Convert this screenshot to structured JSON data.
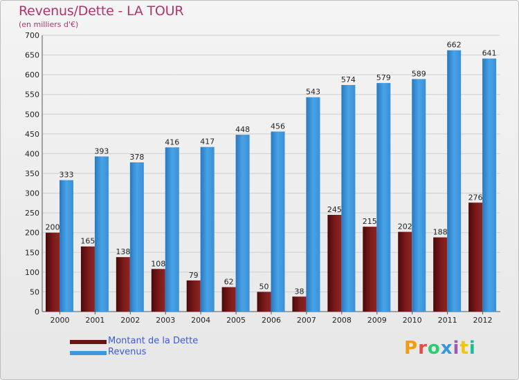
{
  "header": {
    "title": "Revenus/Dette - LA TOUR",
    "subtitle": "(en milliers d'€)"
  },
  "legend": {
    "debt_label": "Montant de la Dette",
    "revenue_label": "Revenus"
  },
  "brand": {
    "name": "Proxiti",
    "colors": [
      "#f39c12",
      "#e74c3c",
      "#2ecc71",
      "#3498db",
      "#9b59b6",
      "#f1c40f",
      "#1abc9c"
    ]
  },
  "colors": {
    "debt": "#6b1414",
    "revenue": "#3d97dc",
    "title": "#b0336b",
    "legend_text": "#3a5bd9"
  },
  "chart_data": {
    "type": "bar",
    "categories": [
      "2000",
      "2001",
      "2002",
      "2003",
      "2004",
      "2005",
      "2006",
      "2007",
      "2008",
      "2009",
      "2010",
      "2011",
      "2012"
    ],
    "series": [
      {
        "name": "Montant de la Dette",
        "values": [
          200,
          165,
          138,
          108,
          79,
          62,
          50,
          38,
          245,
          215,
          202,
          188,
          276
        ]
      },
      {
        "name": "Revenus",
        "values": [
          333,
          393,
          378,
          416,
          417,
          448,
          456,
          543,
          574,
          579,
          589,
          662,
          641
        ]
      }
    ],
    "ylim": [
      0,
      700
    ],
    "yticks": [
      0,
      50,
      100,
      150,
      200,
      250,
      300,
      350,
      400,
      450,
      500,
      550,
      600,
      650,
      700
    ],
    "grid": true,
    "legend_position": "bottom-left"
  }
}
